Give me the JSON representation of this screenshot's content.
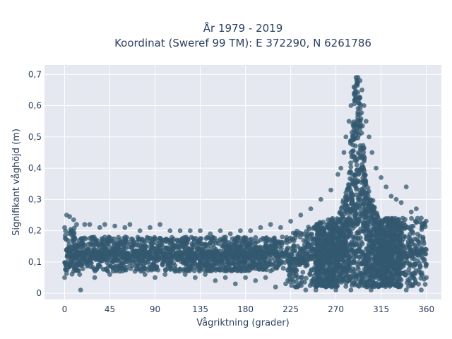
{
  "chart_data": {
    "type": "scatter",
    "title_lines": [
      "År 1979 - 2019",
      "Koordinat (Sweref 99 TM): E 372290, N 6261786"
    ],
    "xlabel": "Vågriktning (grader)",
    "ylabel": "Signifikant våghöjd (m)",
    "xlim": [
      -20,
      375
    ],
    "ylim": [
      -0.02,
      0.73
    ],
    "x_ticks": [
      0,
      45,
      90,
      135,
      180,
      225,
      270,
      315,
      360
    ],
    "x_tick_labels": [
      "0",
      "45",
      "90",
      "135",
      "180",
      "225",
      "270",
      "315",
      "360"
    ],
    "y_ticks": [
      0,
      0.1,
      0.2,
      0.3,
      0.4,
      0.5,
      0.6,
      0.7
    ],
    "y_tick_labels": [
      "0",
      "0,1",
      "0,2",
      "0,3",
      "0,4",
      "0,5",
      "0,6",
      "0,7"
    ],
    "grid": true,
    "legend": "none",
    "colors": {
      "marker": "#33586f",
      "plot_bg": "#e5e8f0",
      "grid": "#ffffff",
      "text": "#2a3f5f"
    },
    "series": [
      {
        "description_points": [
          [
            0,
            0.05
          ],
          [
            0,
            0.21
          ],
          [
            2,
            0.25
          ],
          [
            5,
            0.245
          ],
          [
            9,
            0.235
          ],
          [
            12,
            0.22
          ],
          [
            15,
            0.06
          ],
          [
            16,
            0.01
          ],
          [
            20,
            0.22
          ],
          [
            25,
            0.22
          ],
          [
            30,
            0.05
          ],
          [
            35,
            0.21
          ],
          [
            40,
            0.22
          ],
          [
            45,
            0.06
          ],
          [
            50,
            0.215
          ],
          [
            55,
            0.07
          ],
          [
            60,
            0.21
          ],
          [
            65,
            0.22
          ],
          [
            70,
            0.07
          ],
          [
            75,
            0.2
          ],
          [
            80,
            0.06
          ],
          [
            85,
            0.21
          ],
          [
            90,
            0.05
          ],
          [
            95,
            0.22
          ],
          [
            100,
            0.06
          ],
          [
            105,
            0.2
          ],
          [
            110,
            0.07
          ],
          [
            115,
            0.2
          ],
          [
            120,
            0.06
          ],
          [
            125,
            0.2
          ],
          [
            130,
            0.05
          ],
          [
            135,
            0.2
          ],
          [
            140,
            0.06
          ],
          [
            145,
            0.19
          ],
          [
            150,
            0.04
          ],
          [
            155,
            0.2
          ],
          [
            160,
            0.05
          ],
          [
            165,
            0.19
          ],
          [
            170,
            0.03
          ],
          [
            175,
            0.2
          ],
          [
            180,
            0.05
          ],
          [
            185,
            0.2
          ],
          [
            190,
            0.04
          ],
          [
            195,
            0.21
          ],
          [
            200,
            0.05
          ],
          [
            205,
            0.22
          ],
          [
            210,
            0.02
          ],
          [
            215,
            0.21
          ],
          [
            220,
            0.03
          ],
          [
            225,
            0.23
          ],
          [
            230,
            0.02
          ],
          [
            235,
            0.25
          ],
          [
            240,
            0.01
          ],
          [
            245,
            0.27
          ],
          [
            250,
            0.01
          ],
          [
            255,
            0.3
          ],
          [
            260,
            0.02
          ],
          [
            265,
            0.33
          ],
          [
            270,
            0.01
          ],
          [
            272,
            0.38
          ],
          [
            275,
            0.4
          ],
          [
            278,
            0.45
          ],
          [
            280,
            0.5
          ],
          [
            283,
            0.55
          ],
          [
            285,
            0.6
          ],
          [
            288,
            0.66
          ],
          [
            290,
            0.69
          ],
          [
            292,
            0.69
          ],
          [
            294,
            0.68
          ],
          [
            296,
            0.65
          ],
          [
            298,
            0.6
          ],
          [
            300,
            0.55
          ],
          [
            303,
            0.5
          ],
          [
            306,
            0.45
          ],
          [
            310,
            0.4
          ],
          [
            315,
            0.37
          ],
          [
            320,
            0.34
          ],
          [
            325,
            0.31
          ],
          [
            330,
            0.3
          ],
          [
            335,
            0.29
          ],
          [
            340,
            0.34
          ],
          [
            345,
            0.26
          ],
          [
            350,
            0.27
          ],
          [
            355,
            0.24
          ],
          [
            358,
            0.22
          ],
          [
            360,
            0.05
          ],
          [
            305,
            0.01
          ],
          [
            285,
            0.01
          ],
          [
            340,
            0.01
          ],
          [
            355,
            0.01
          ]
        ]
      }
    ]
  }
}
